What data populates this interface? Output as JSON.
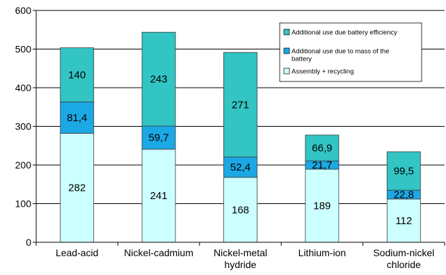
{
  "chart_data": {
    "type": "bar",
    "stacked": true,
    "categories": [
      [
        "Lead-acid"
      ],
      [
        "Nickel-cadmium"
      ],
      [
        "Nickel-metal",
        "hydride"
      ],
      [
        "Lithium-ion"
      ],
      [
        "Sodium-nickel",
        "chloride"
      ]
    ],
    "series": [
      {
        "name": "Assembly + recycling",
        "color": "#ccffff",
        "values": [
          282,
          241,
          168,
          189,
          112
        ],
        "labels": [
          "282",
          "241",
          "168",
          "189",
          "112"
        ]
      },
      {
        "name": "Additional use due to mass of the battery",
        "color": "#1ca8e4",
        "values": [
          81.4,
          59.7,
          52.4,
          21.7,
          22.8
        ],
        "labels": [
          "81,4",
          "59,7",
          "52,4",
          "21,7",
          "22,8"
        ]
      },
      {
        "name": "Additional use due battery efficiency",
        "color": "#33c4c4",
        "values": [
          140,
          243,
          271,
          66.9,
          99.5
        ],
        "labels": [
          "140",
          "243",
          "271",
          "66,9",
          "99,5"
        ]
      }
    ],
    "legend_order": [
      [
        "Additional use due battery efficiency"
      ],
      [
        "Additional use due to mass of the",
        "battery"
      ],
      [
        "Assembly + recycling"
      ]
    ],
    "legend_series_index": [
      2,
      1,
      0
    ],
    "ylim": [
      0,
      600
    ],
    "yticks": [
      0,
      100,
      200,
      300,
      400,
      500,
      600
    ],
    "grid": "horizontal",
    "legend_position": "top-right",
    "title": "",
    "xlabel": "",
    "ylabel": ""
  }
}
